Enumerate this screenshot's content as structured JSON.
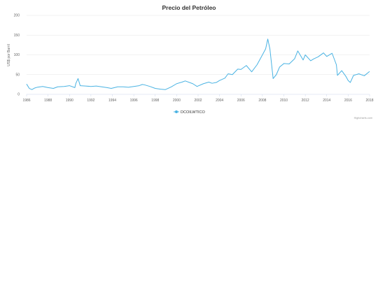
{
  "chart_data": {
    "type": "line",
    "title": "Precio del Petróleo",
    "xlabel": "",
    "ylabel": "US$ por Barril",
    "xlim": [
      1986,
      2018
    ],
    "ylim": [
      0,
      200
    ],
    "x_ticks": [
      "1986",
      "1988",
      "1990",
      "1992",
      "1994",
      "1996",
      "1998",
      "2000",
      "2002",
      "2004",
      "2006",
      "2008",
      "2010",
      "2012",
      "2014",
      "2016",
      "2018"
    ],
    "y_ticks": [
      "0",
      "50",
      "100",
      "150",
      "200"
    ],
    "grid": true,
    "legend_position": "bottom-center",
    "line_color": "#4ab3e3",
    "series": [
      {
        "name": "DCOILWTICO",
        "x": [
          1986.0,
          1986.25,
          1986.5,
          1986.75,
          1987.0,
          1987.5,
          1988.0,
          1988.5,
          1988.9,
          1989.5,
          1990.0,
          1990.5,
          1990.6,
          1990.8,
          1991.0,
          1991.5,
          1992.0,
          1992.5,
          1993.0,
          1993.5,
          1993.9,
          1994.5,
          1995.0,
          1995.5,
          1996.0,
          1996.5,
          1996.8,
          1997.0,
          1997.5,
          1998.0,
          1998.5,
          1998.95,
          1999.5,
          2000.0,
          2000.5,
          2000.8,
          2001.5,
          2001.9,
          2002.5,
          2003.0,
          2003.3,
          2003.7,
          2004.0,
          2004.5,
          2004.8,
          2005.2,
          2005.7,
          2006.0,
          2006.5,
          2007.0,
          2007.5,
          2007.9,
          2008.3,
          2008.5,
          2008.7,
          2008.9,
          2009.0,
          2009.3,
          2009.6,
          2010.0,
          2010.5,
          2011.0,
          2011.3,
          2011.8,
          2012.0,
          2012.5,
          2012.8,
          2013.2,
          2013.7,
          2014.0,
          2014.5,
          2014.9,
          2015.0,
          2015.4,
          2015.8,
          2016.0,
          2016.2,
          2016.5,
          2017.0,
          2017.5,
          2018.0
        ],
        "values": [
          26,
          15,
          12,
          16,
          18,
          20,
          17,
          15,
          19,
          20,
          22,
          17,
          28,
          40,
          22,
          21,
          20,
          21,
          19,
          17,
          15,
          19,
          19,
          18,
          20,
          22,
          25,
          24,
          20,
          15,
          13,
          12,
          19,
          27,
          31,
          34,
          27,
          20,
          27,
          31,
          28,
          30,
          35,
          41,
          52,
          50,
          64,
          63,
          73,
          57,
          75,
          95,
          115,
          140,
          115,
          65,
          40,
          50,
          69,
          78,
          77,
          90,
          110,
          87,
          100,
          85,
          90,
          95,
          105,
          96,
          104,
          75,
          48,
          60,
          45,
          35,
          30,
          48,
          52,
          47,
          58
        ]
      }
    ],
    "credits": "Highcharts.com"
  }
}
